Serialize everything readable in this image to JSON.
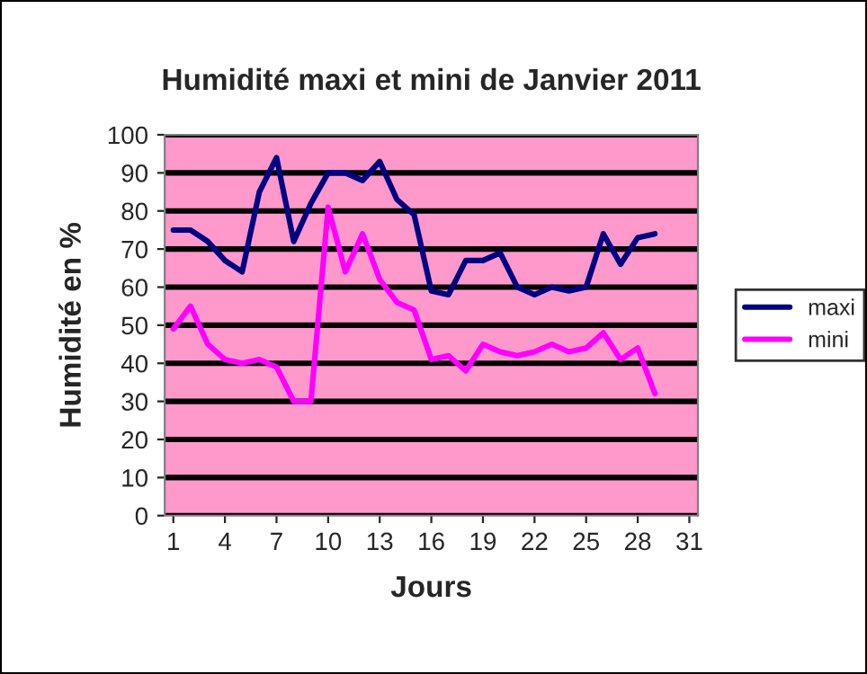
{
  "chart_data": {
    "type": "line",
    "title": "Humidité maxi et mini de Janvier 2011",
    "xlabel": "Jours",
    "ylabel": "Humidité en %",
    "x": [
      1,
      2,
      3,
      4,
      5,
      6,
      7,
      8,
      9,
      10,
      11,
      12,
      13,
      14,
      15,
      16,
      17,
      18,
      19,
      20,
      21,
      22,
      23,
      24,
      25,
      26,
      27,
      28,
      29
    ],
    "series": [
      {
        "name": "maxi",
        "color": "#000080",
        "values": [
          75,
          75,
          72,
          67,
          64,
          85,
          94,
          72,
          82,
          90,
          90,
          88,
          93,
          83,
          79,
          59,
          58,
          67,
          67,
          69,
          60,
          58,
          60,
          59,
          60,
          74,
          66,
          73,
          74
        ]
      },
      {
        "name": "mini",
        "color": "#ff00ff",
        "values": [
          49,
          55,
          45,
          41,
          40,
          41,
          39,
          30,
          30,
          81,
          64,
          74,
          62,
          56,
          54,
          41,
          42,
          38,
          45,
          43,
          42,
          43,
          45,
          43,
          44,
          48,
          41,
          44,
          32
        ]
      }
    ],
    "xlim": [
      0.5,
      31.5
    ],
    "xticks": [
      1,
      4,
      7,
      10,
      13,
      16,
      19,
      22,
      25,
      28,
      31
    ],
    "ylim": [
      0,
      100
    ],
    "yticks": [
      0,
      10,
      20,
      30,
      40,
      50,
      60,
      70,
      80,
      90,
      100
    ],
    "grid": "y",
    "legend": "right",
    "marker": "none",
    "line_style": "solid"
  }
}
